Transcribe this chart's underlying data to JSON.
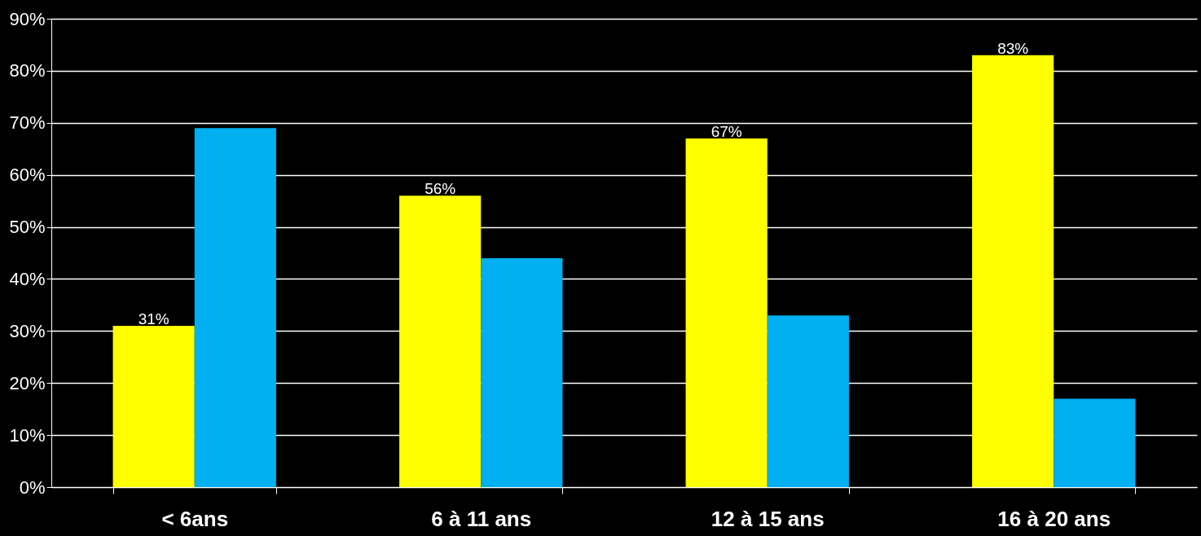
{
  "chart_data": {
    "type": "bar",
    "categories": [
      "< 6ans",
      "6 à 11 ans",
      "12 à 15 ans",
      "16 à 20 ans"
    ],
    "series": [
      {
        "color": "#ffff00",
        "values": [
          31,
          56,
          67,
          83
        ],
        "value_labels": [
          "31%",
          "56%",
          "67%",
          "83%"
        ]
      },
      {
        "color": "#00b0f0",
        "values": [
          69,
          44,
          33,
          17
        ]
      }
    ],
    "ylim": [
      0,
      90
    ],
    "yticks": [
      {
        "value": 0,
        "label": "0%"
      },
      {
        "value": 10,
        "label": "10%"
      },
      {
        "value": 20,
        "label": "20%"
      },
      {
        "value": 30,
        "label": "30%"
      },
      {
        "value": 40,
        "label": "40%"
      },
      {
        "value": 50,
        "label": "50%"
      },
      {
        "value": 60,
        "label": "60%"
      },
      {
        "value": 70,
        "label": "70%"
      },
      {
        "value": 80,
        "label": "80%"
      },
      {
        "value": 90,
        "label": "90%"
      }
    ],
    "grid": "y",
    "legend": false
  }
}
